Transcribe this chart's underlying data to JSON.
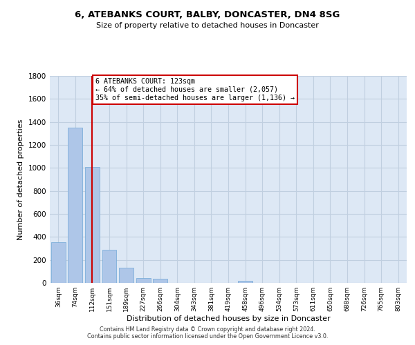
{
  "title": "6, ATEBANKS COURT, BALBY, DONCASTER, DN4 8SG",
  "subtitle": "Size of property relative to detached houses in Doncaster",
  "xlabel": "Distribution of detached houses by size in Doncaster",
  "ylabel": "Number of detached properties",
  "bar_labels": [
    "36sqm",
    "74sqm",
    "112sqm",
    "151sqm",
    "189sqm",
    "227sqm",
    "266sqm",
    "304sqm",
    "343sqm",
    "381sqm",
    "419sqm",
    "458sqm",
    "496sqm",
    "534sqm",
    "573sqm",
    "611sqm",
    "650sqm",
    "688sqm",
    "726sqm",
    "765sqm",
    "803sqm"
  ],
  "bar_values": [
    355,
    1350,
    1010,
    290,
    130,
    45,
    35,
    0,
    0,
    0,
    0,
    20,
    0,
    0,
    0,
    0,
    0,
    0,
    0,
    0,
    0
  ],
  "bar_color": "#aec6e8",
  "bar_edge_color": "#6fa8d6",
  "plot_bg_color": "#dde8f5",
  "property_line_x": 2,
  "property_line_color": "#cc0000",
  "annotation_title": "6 ATEBANKS COURT: 123sqm",
  "annotation_line1": "← 64% of detached houses are smaller (2,057)",
  "annotation_line2": "35% of semi-detached houses are larger (1,136) →",
  "annotation_box_color": "#ffffff",
  "annotation_box_edge": "#cc0000",
  "ylim": [
    0,
    1800
  ],
  "yticks": [
    0,
    200,
    400,
    600,
    800,
    1000,
    1200,
    1400,
    1600,
    1800
  ],
  "footer_line1": "Contains HM Land Registry data © Crown copyright and database right 2024.",
  "footer_line2": "Contains public sector information licensed under the Open Government Licence v3.0.",
  "background_color": "#ffffff",
  "grid_color": "#c0cfe0"
}
